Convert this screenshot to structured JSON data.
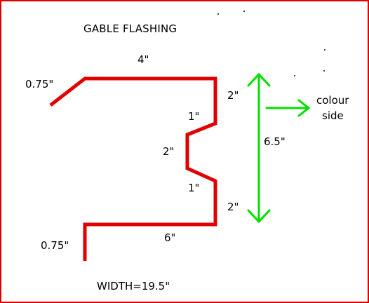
{
  "title": "GABLE FLASHING",
  "dimensions": {
    "left_hem_top": "0.75\"",
    "top_length": "4\"",
    "upper_drop": "2\"",
    "upper_step": "1\"",
    "middle": "2\"",
    "lower_step": "1\"",
    "lower_drop": "2\"",
    "bottom_length": "6\"",
    "left_hem_bottom": "0.75\""
  },
  "overall_height": "6.5\"",
  "colour_side": {
    "line1": "colour",
    "line2": "side"
  },
  "width_total": "WIDTH=19.5\"",
  "colors": {
    "profile": "#e00000",
    "arrows": "#00e000",
    "frame": "#e00000"
  }
}
